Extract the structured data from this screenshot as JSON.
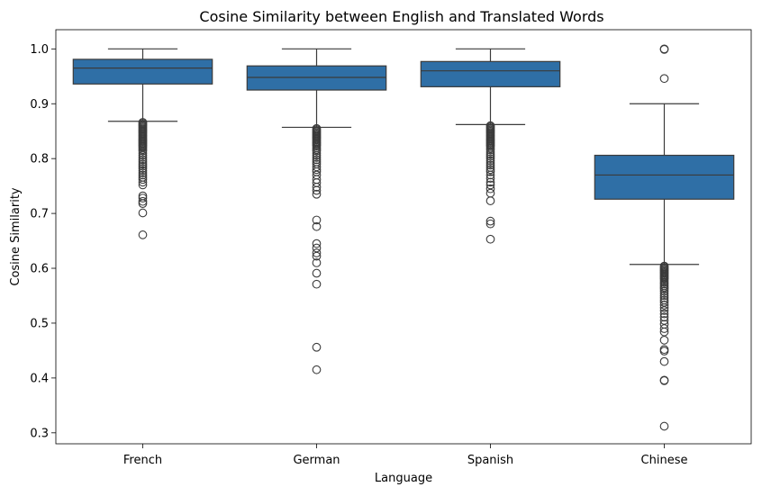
{
  "chart_data": {
    "type": "box",
    "title": "Cosine Similarity between English and Translated Words",
    "xlabel": "Language",
    "ylabel": "Cosine Similarity",
    "ylim": [
      0.28,
      1.035
    ],
    "yticks": [
      "0.3",
      "0.4",
      "0.5",
      "0.6",
      "0.7",
      "0.8",
      "0.9",
      "1.0"
    ],
    "grid": false,
    "colors": {
      "box": "#2f6fa6",
      "line": "#3b3b3b"
    },
    "categories": [
      "French",
      "German",
      "Spanish",
      "Chinese"
    ],
    "boxes": [
      {
        "name": "French",
        "whisker_low": 0.868,
        "q1": 0.936,
        "median": 0.965,
        "q3": 0.981,
        "whisker_high": 1.0,
        "outliers": [
          0.866,
          0.864,
          0.862,
          0.86,
          0.858,
          0.856,
          0.854,
          0.852,
          0.85,
          0.848,
          0.846,
          0.844,
          0.842,
          0.84,
          0.838,
          0.836,
          0.834,
          0.832,
          0.83,
          0.828,
          0.826,
          0.824,
          0.822,
          0.82,
          0.817,
          0.814,
          0.81,
          0.806,
          0.802,
          0.798,
          0.794,
          0.79,
          0.786,
          0.782,
          0.778,
          0.774,
          0.77,
          0.766,
          0.762,
          0.757,
          0.752,
          0.732,
          0.728,
          0.722,
          0.718,
          0.701,
          0.661
        ]
      },
      {
        "name": "German",
        "whisker_low": 0.857,
        "q1": 0.925,
        "median": 0.948,
        "q3": 0.969,
        "whisker_high": 1.0,
        "outliers": [
          0.855,
          0.853,
          0.851,
          0.849,
          0.847,
          0.845,
          0.843,
          0.841,
          0.839,
          0.837,
          0.835,
          0.833,
          0.831,
          0.829,
          0.827,
          0.825,
          0.823,
          0.82,
          0.817,
          0.814,
          0.81,
          0.806,
          0.802,
          0.798,
          0.794,
          0.79,
          0.785,
          0.78,
          0.776,
          0.77,
          0.762,
          0.756,
          0.748,
          0.742,
          0.735,
          0.688,
          0.676,
          0.645,
          0.637,
          0.628,
          0.622,
          0.61,
          0.591,
          0.571,
          0.456,
          0.415
        ]
      },
      {
        "name": "Spanish",
        "whisker_low": 0.862,
        "q1": 0.931,
        "median": 0.96,
        "q3": 0.977,
        "whisker_high": 1.0,
        "outliers": [
          0.86,
          0.858,
          0.856,
          0.854,
          0.852,
          0.85,
          0.848,
          0.846,
          0.844,
          0.842,
          0.84,
          0.838,
          0.836,
          0.834,
          0.832,
          0.83,
          0.828,
          0.826,
          0.824,
          0.822,
          0.819,
          0.816,
          0.812,
          0.808,
          0.804,
          0.8,
          0.796,
          0.792,
          0.788,
          0.784,
          0.78,
          0.776,
          0.77,
          0.764,
          0.757,
          0.752,
          0.745,
          0.737,
          0.723,
          0.686,
          0.681,
          0.653
        ]
      },
      {
        "name": "Chinese",
        "whisker_low": 0.607,
        "q1": 0.726,
        "median": 0.77,
        "q3": 0.806,
        "whisker_high": 0.9,
        "outliers": [
          1.0,
          0.999,
          0.946,
          0.604,
          0.602,
          0.6,
          0.598,
          0.596,
          0.594,
          0.592,
          0.59,
          0.588,
          0.586,
          0.584,
          0.582,
          0.58,
          0.577,
          0.574,
          0.571,
          0.568,
          0.565,
          0.562,
          0.558,
          0.554,
          0.55,
          0.546,
          0.542,
          0.538,
          0.533,
          0.528,
          0.523,
          0.517,
          0.511,
          0.505,
          0.498,
          0.49,
          0.484,
          0.469,
          0.452,
          0.449,
          0.43,
          0.396,
          0.395,
          0.312
        ]
      }
    ]
  }
}
